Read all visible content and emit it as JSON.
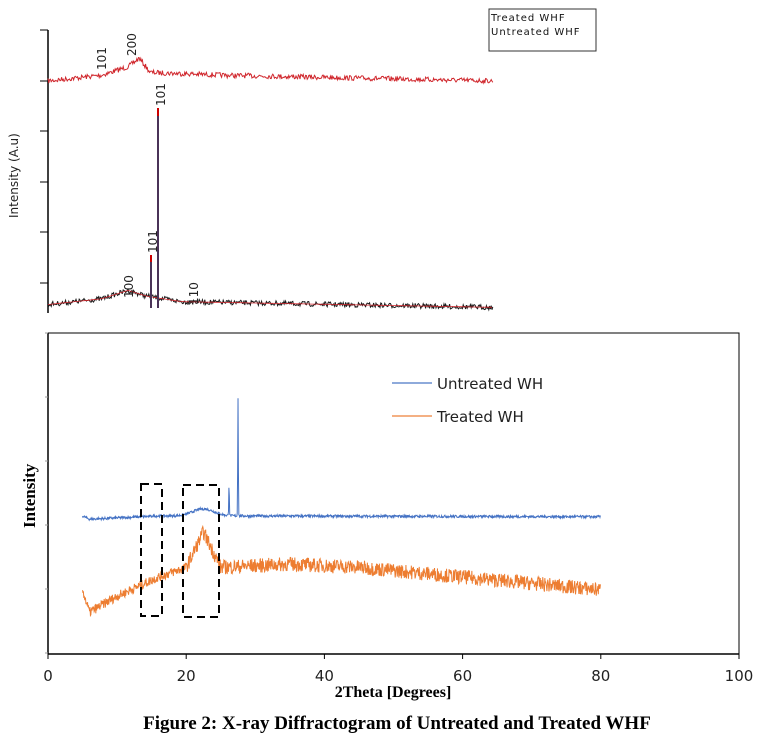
{
  "caption": "Figure 2: X-ray Diffractogram of Untreated and Treated WHF",
  "chart_data": [
    {
      "type": "line",
      "title": "",
      "ylabel": "Intensity (A.u)",
      "xlabel": "",
      "legend": {
        "placement": "top-right",
        "entries": [
          "Treated WHF",
          "Untreated WHF"
        ]
      },
      "grid": false,
      "series": [
        {
          "name": "Treated WHF",
          "color": "#d0262c",
          "description_points": [
            [
              0,
              0.82
            ],
            [
              0.12,
              0.84
            ],
            [
              0.18,
              0.87
            ],
            [
              0.205,
              0.9
            ],
            [
              0.23,
              0.85
            ],
            [
              0.4,
              0.84
            ],
            [
              1.0,
              0.82
            ]
          ]
        },
        {
          "name": "Untreated WHF",
          "color": "#1a1a1a",
          "description_points": [
            [
              0,
              0.03
            ],
            [
              0.12,
              0.05
            ],
            [
              0.18,
              0.08
            ],
            [
              0.22,
              0.06
            ],
            [
              0.3,
              0.04
            ],
            [
              1.0,
              0.02
            ]
          ]
        }
      ],
      "peak_labels": [
        {
          "text": "101",
          "series": "Treated WHF"
        },
        {
          "text": "200",
          "series": "Treated WHF"
        },
        {
          "text": "101",
          "series": "Untreated WHF"
        },
        {
          "text": "101",
          "series": "Untreated WHF"
        },
        {
          "text": "100",
          "series": "Untreated WHF"
        },
        {
          "text": "110",
          "series": "Untreated WHF"
        }
      ]
    },
    {
      "type": "line",
      "title": "",
      "xlabel": "2Theta [Degrees]",
      "ylabel": "Intensity",
      "xlim": [
        0,
        100
      ],
      "x_ticks": [
        "0",
        "20",
        "40",
        "60",
        "80",
        "100"
      ],
      "grid": false,
      "legend": {
        "placement": "top-right",
        "entries": [
          "Untreated WH",
          "Treated WH"
        ]
      },
      "series": [
        {
          "name": "Untreated WH",
          "color": "#4472c4",
          "x_range": [
            5,
            80
          ],
          "baseline": 0.43,
          "peaks": [
            {
              "x": 22.5,
              "height": 0.03
            },
            {
              "x": 26.2,
              "height": 0.1
            },
            {
              "x": 27.5,
              "height": 0.37
            }
          ]
        },
        {
          "name": "Treated WH",
          "color": "#ed7d31",
          "x_range": [
            5,
            80
          ],
          "profile": [
            [
              5,
              0.2
            ],
            [
              6,
              0.13
            ],
            [
              10,
              0.18
            ],
            [
              16,
              0.24
            ],
            [
              20,
              0.27
            ],
            [
              22.5,
              0.38
            ],
            [
              25,
              0.27
            ],
            [
              35,
              0.28
            ],
            [
              45,
              0.27
            ],
            [
              60,
              0.24
            ],
            [
              80,
              0.2
            ]
          ]
        }
      ],
      "annotations": [
        {
          "type": "dashed-box",
          "x_range": [
            13.5,
            16.5
          ]
        },
        {
          "type": "dashed-box",
          "x_range": [
            19.5,
            24.5
          ]
        }
      ]
    }
  ]
}
